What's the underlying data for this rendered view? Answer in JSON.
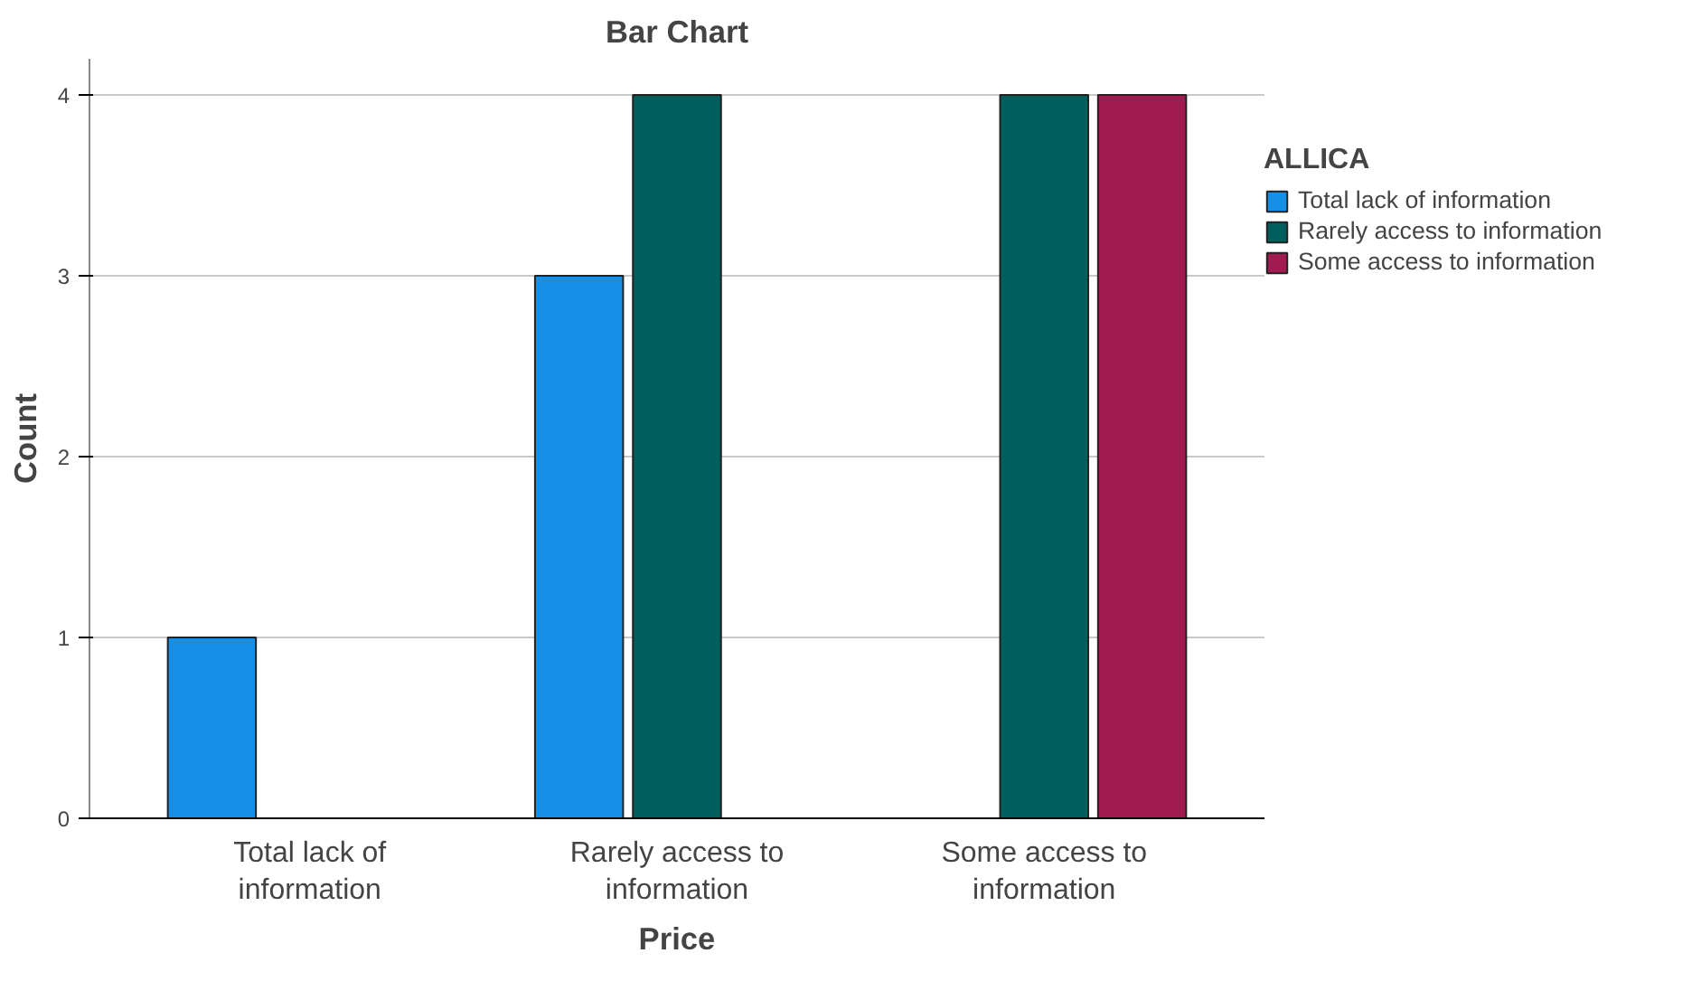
{
  "chart_data": {
    "type": "bar",
    "title": "Bar Chart",
    "xlabel": "Price",
    "ylabel": "Count",
    "legend_title": "ALLICA",
    "categories": [
      "Total lack of information",
      "Rarely access to information",
      "Some access to information"
    ],
    "series": [
      {
        "name": "Total lack of information",
        "color": "#1590e8",
        "values": [
          1,
          3,
          null
        ]
      },
      {
        "name": "Rarely access to information",
        "color": "#005e5c",
        "values": [
          null,
          4,
          4
        ]
      },
      {
        "name": "Some access to information",
        "color": "#a11a50",
        "values": [
          null,
          null,
          4
        ]
      }
    ],
    "ylim": [
      0,
      4.2
    ],
    "yticks": [
      0,
      1,
      2,
      3,
      4
    ],
    "grid": "y",
    "legend": "top right"
  }
}
